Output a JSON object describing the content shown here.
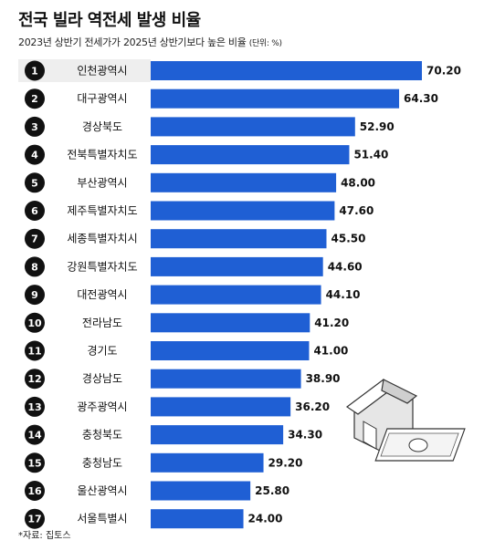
{
  "header": {
    "title": "전국 빌라 역전세 발생 비율",
    "subtitle": "2023년 상반기 전세가가 2025년 상반기보다 높은 비율",
    "unit": "(단위: %)"
  },
  "source": "*자료: 집토스",
  "colors": {
    "bar": "#1f5fd4",
    "highlight_label": "#2a62d6",
    "rank_circle": "#111111",
    "row_band": "#eeeeee"
  },
  "chart_data": {
    "type": "bar",
    "orientation": "horizontal",
    "title": "전국 빌라 역전세 발생 비율",
    "ylabel": "",
    "xlabel": "",
    "categories": [
      "인천광역시",
      "대구광역시",
      "경상북도",
      "전북특별자치도",
      "부산광역시",
      "제주특별자치도",
      "세종특별자치시",
      "강원특별자치도",
      "대전광역시",
      "전라남도",
      "경기도",
      "경상남도",
      "광주광역시",
      "충청북도",
      "충청남도",
      "울산광역시",
      "서울특별시"
    ],
    "ranks": [
      "1",
      "2",
      "3",
      "4",
      "5",
      "6",
      "7",
      "8",
      "9",
      "10",
      "11",
      "12",
      "13",
      "14",
      "15",
      "16",
      "17"
    ],
    "values": [
      70.2,
      64.3,
      52.9,
      51.4,
      48.0,
      47.6,
      45.5,
      44.6,
      44.1,
      41.2,
      41.0,
      38.9,
      36.2,
      34.3,
      29.2,
      25.8,
      24.0
    ],
    "value_labels": [
      "70.20",
      "64.30",
      "52.90",
      "51.40",
      "48.00",
      "47.60",
      "45.50",
      "44.60",
      "44.10",
      "41.20",
      "41.00",
      "38.90",
      "36.20",
      "34.30",
      "29.20",
      "25.80",
      "24.00"
    ],
    "xlim": [
      0,
      80
    ],
    "grid": false,
    "legend": "none"
  }
}
